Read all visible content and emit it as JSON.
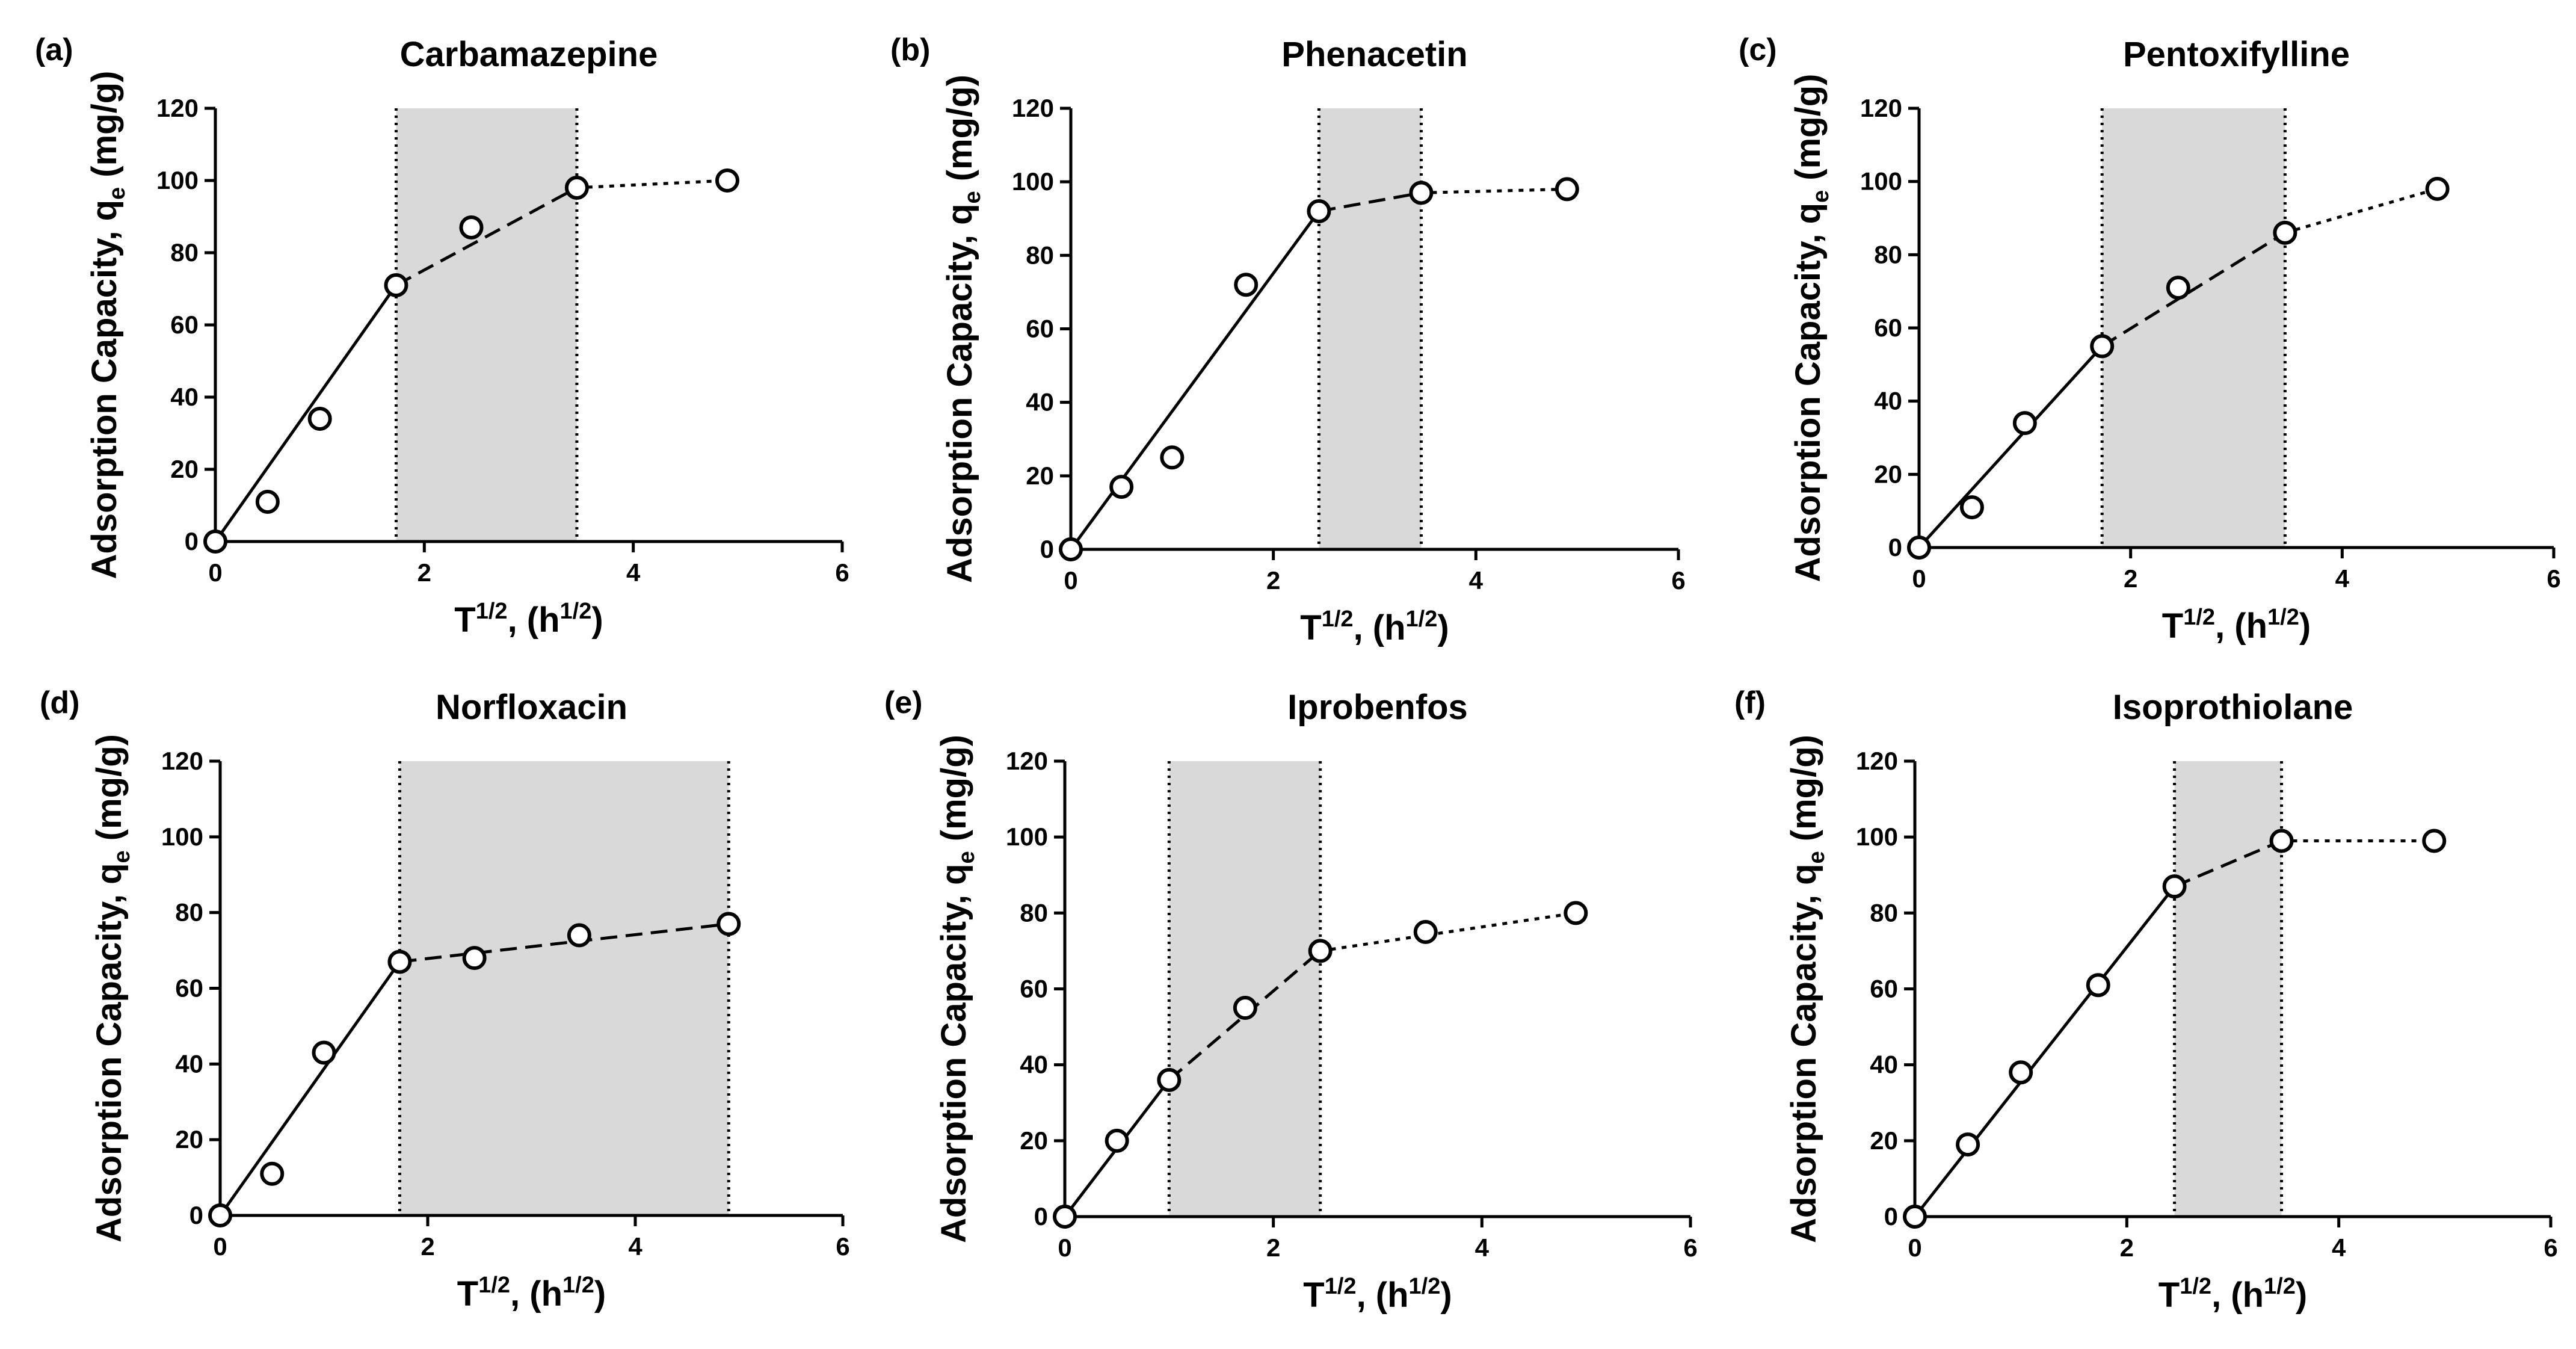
{
  "chart_data": [
    {
      "type": "scatter",
      "panel": "(a)",
      "title": "Carbamazepine",
      "xlabel": {
        "main": "T",
        "sup": "1/2",
        "mid": ", (h",
        "sup2": "1/2",
        "end": ")"
      },
      "ylabel": {
        "main": "Adsorption Capacity, q",
        "sub": "e",
        "end": " (mg/g)"
      },
      "xlim": [
        0,
        6
      ],
      "ylim": [
        0,
        120
      ],
      "xticks": [
        "0",
        "2",
        "4",
        "6"
      ],
      "yticks": [
        "0",
        "20",
        "40",
        "60",
        "80",
        "100",
        "120"
      ],
      "shaded_region": [
        1.73,
        3.46
      ],
      "points": {
        "x": [
          0,
          0.5,
          1.0,
          1.73,
          2.45,
          3.46,
          4.9
        ],
        "y": [
          0,
          11,
          34,
          71,
          87,
          98,
          100
        ]
      },
      "segments": [
        {
          "style": "solid",
          "x": [
            0,
            1.73
          ],
          "y": [
            0,
            71
          ]
        },
        {
          "style": "dashed",
          "x": [
            1.73,
            3.46
          ],
          "y": [
            71,
            98
          ]
        },
        {
          "style": "dotted",
          "x": [
            3.46,
            4.9
          ],
          "y": [
            98,
            100
          ]
        }
      ]
    },
    {
      "type": "scatter",
      "panel": "(b)",
      "title": "Phenacetin",
      "xlabel": {
        "main": "T",
        "sup": "1/2",
        "mid": ", (h",
        "sup2": "1/2",
        "end": ")"
      },
      "ylabel": {
        "main": "Adsorption Capacity, q",
        "sub": "e",
        "end": " (mg/g)"
      },
      "xlim": [
        0,
        6
      ],
      "ylim": [
        0,
        120
      ],
      "xticks": [
        "0",
        "2",
        "4",
        "6"
      ],
      "yticks": [
        "0",
        "20",
        "40",
        "60",
        "80",
        "100",
        "120"
      ],
      "shaded_region": [
        2.45,
        3.46
      ],
      "points": {
        "x": [
          0,
          0.5,
          1.0,
          1.73,
          2.45,
          3.46,
          4.9
        ],
        "y": [
          0,
          17,
          25,
          72,
          92,
          97,
          98
        ]
      },
      "segments": [
        {
          "style": "solid",
          "x": [
            0,
            2.45
          ],
          "y": [
            0,
            92
          ]
        },
        {
          "style": "dashed",
          "x": [
            2.45,
            3.46
          ],
          "y": [
            92,
            97
          ]
        },
        {
          "style": "dotted",
          "x": [
            3.46,
            4.9
          ],
          "y": [
            97,
            98
          ]
        }
      ]
    },
    {
      "type": "scatter",
      "panel": "(c)",
      "title": "Pentoxifylline",
      "xlabel": {
        "main": "T",
        "sup": "1/2",
        "mid": ", (h",
        "sup2": "1/2",
        "end": ")"
      },
      "ylabel": {
        "main": "Adsorption Capacity, q",
        "sub": "e",
        "end": " (mg/g)"
      },
      "xlim": [
        0,
        6
      ],
      "ylim": [
        0,
        120
      ],
      "xticks": [
        "0",
        "2",
        "4",
        "6"
      ],
      "yticks": [
        "0",
        "20",
        "40",
        "60",
        "80",
        "100",
        "120"
      ],
      "shaded_region": [
        1.73,
        3.46
      ],
      "points": {
        "x": [
          0,
          0.5,
          1.0,
          1.73,
          2.45,
          3.46,
          4.9
        ],
        "y": [
          0,
          11,
          34,
          55,
          71,
          86,
          98
        ]
      },
      "segments": [
        {
          "style": "solid",
          "x": [
            0,
            1.73
          ],
          "y": [
            0,
            55
          ]
        },
        {
          "style": "dashed",
          "x": [
            1.73,
            3.46
          ],
          "y": [
            55,
            86
          ]
        },
        {
          "style": "dotted",
          "x": [
            3.46,
            4.9
          ],
          "y": [
            86,
            98
          ]
        }
      ]
    },
    {
      "type": "scatter",
      "panel": "(d)",
      "title": "Norfloxacin",
      "xlabel": {
        "main": "T",
        "sup": "1/2",
        "mid": ", (h",
        "sup2": "1/2",
        "end": ")"
      },
      "ylabel": {
        "main": "Adsorption Capacity, q",
        "sub": "e",
        "end": " (mg/g)"
      },
      "xlim": [
        0,
        6
      ],
      "ylim": [
        0,
        120
      ],
      "xticks": [
        "0",
        "2",
        "4",
        "6"
      ],
      "yticks": [
        "0",
        "20",
        "40",
        "60",
        "80",
        "100",
        "120"
      ],
      "shaded_region": [
        1.73,
        4.9
      ],
      "points": {
        "x": [
          0,
          0.5,
          1.0,
          1.73,
          2.45,
          3.46,
          4.9
        ],
        "y": [
          0,
          11,
          43,
          67,
          68,
          74,
          77
        ]
      },
      "segments": [
        {
          "style": "solid",
          "x": [
            0,
            1.73
          ],
          "y": [
            0,
            67
          ]
        },
        {
          "style": "dashed",
          "x": [
            1.73,
            4.9
          ],
          "y": [
            67,
            77
          ]
        }
      ]
    },
    {
      "type": "scatter",
      "panel": "(e)",
      "title": "Iprobenfos",
      "xlabel": {
        "main": "T",
        "sup": "1/2",
        "mid": ", (h",
        "sup2": "1/2",
        "end": ")"
      },
      "ylabel": {
        "main": "Adsorption Capacity, q",
        "sub": "e",
        "end": " (mg/g)"
      },
      "xlim": [
        0,
        6
      ],
      "ylim": [
        0,
        120
      ],
      "xticks": [
        "0",
        "2",
        "4",
        "6"
      ],
      "yticks": [
        "0",
        "20",
        "40",
        "60",
        "80",
        "100",
        "120"
      ],
      "shaded_region": [
        1.0,
        2.45
      ],
      "points": {
        "x": [
          0,
          0.5,
          1.0,
          1.73,
          2.45,
          3.46,
          4.9
        ],
        "y": [
          0,
          20,
          36,
          55,
          70,
          75,
          80
        ]
      },
      "segments": [
        {
          "style": "solid",
          "x": [
            0,
            1.0
          ],
          "y": [
            0,
            36
          ]
        },
        {
          "style": "dashed",
          "x": [
            1.0,
            2.45
          ],
          "y": [
            36,
            70
          ]
        },
        {
          "style": "dotted",
          "x": [
            2.45,
            4.9
          ],
          "y": [
            70,
            80
          ]
        }
      ]
    },
    {
      "type": "scatter",
      "panel": "(f)",
      "title": "Isoprothiolane",
      "xlabel": {
        "main": "T",
        "sup": "1/2",
        "mid": ", (h",
        "sup2": "1/2",
        "end": ")"
      },
      "ylabel": {
        "main": "Adsorption Capacity, q",
        "sub": "e",
        "end": " (mg/g)"
      },
      "xlim": [
        0,
        6
      ],
      "ylim": [
        0,
        120
      ],
      "xticks": [
        "0",
        "2",
        "4",
        "6"
      ],
      "yticks": [
        "0",
        "20",
        "40",
        "60",
        "80",
        "100",
        "120"
      ],
      "shaded_region": [
        2.45,
        3.46
      ],
      "points": {
        "x": [
          0,
          0.5,
          1.0,
          1.73,
          2.45,
          3.46,
          4.9
        ],
        "y": [
          0,
          19,
          38,
          61,
          87,
          99,
          99
        ]
      },
      "segments": [
        {
          "style": "solid",
          "x": [
            0,
            2.45
          ],
          "y": [
            0,
            87
          ]
        },
        {
          "style": "dashed",
          "x": [
            2.45,
            3.46
          ],
          "y": [
            87,
            99
          ]
        },
        {
          "style": "dotted",
          "x": [
            3.46,
            4.9
          ],
          "y": [
            99,
            99
          ]
        }
      ]
    }
  ],
  "colors": {
    "ink": "#000000",
    "shade": "#d9d9d9",
    "marker_fill": "#ffffff"
  }
}
